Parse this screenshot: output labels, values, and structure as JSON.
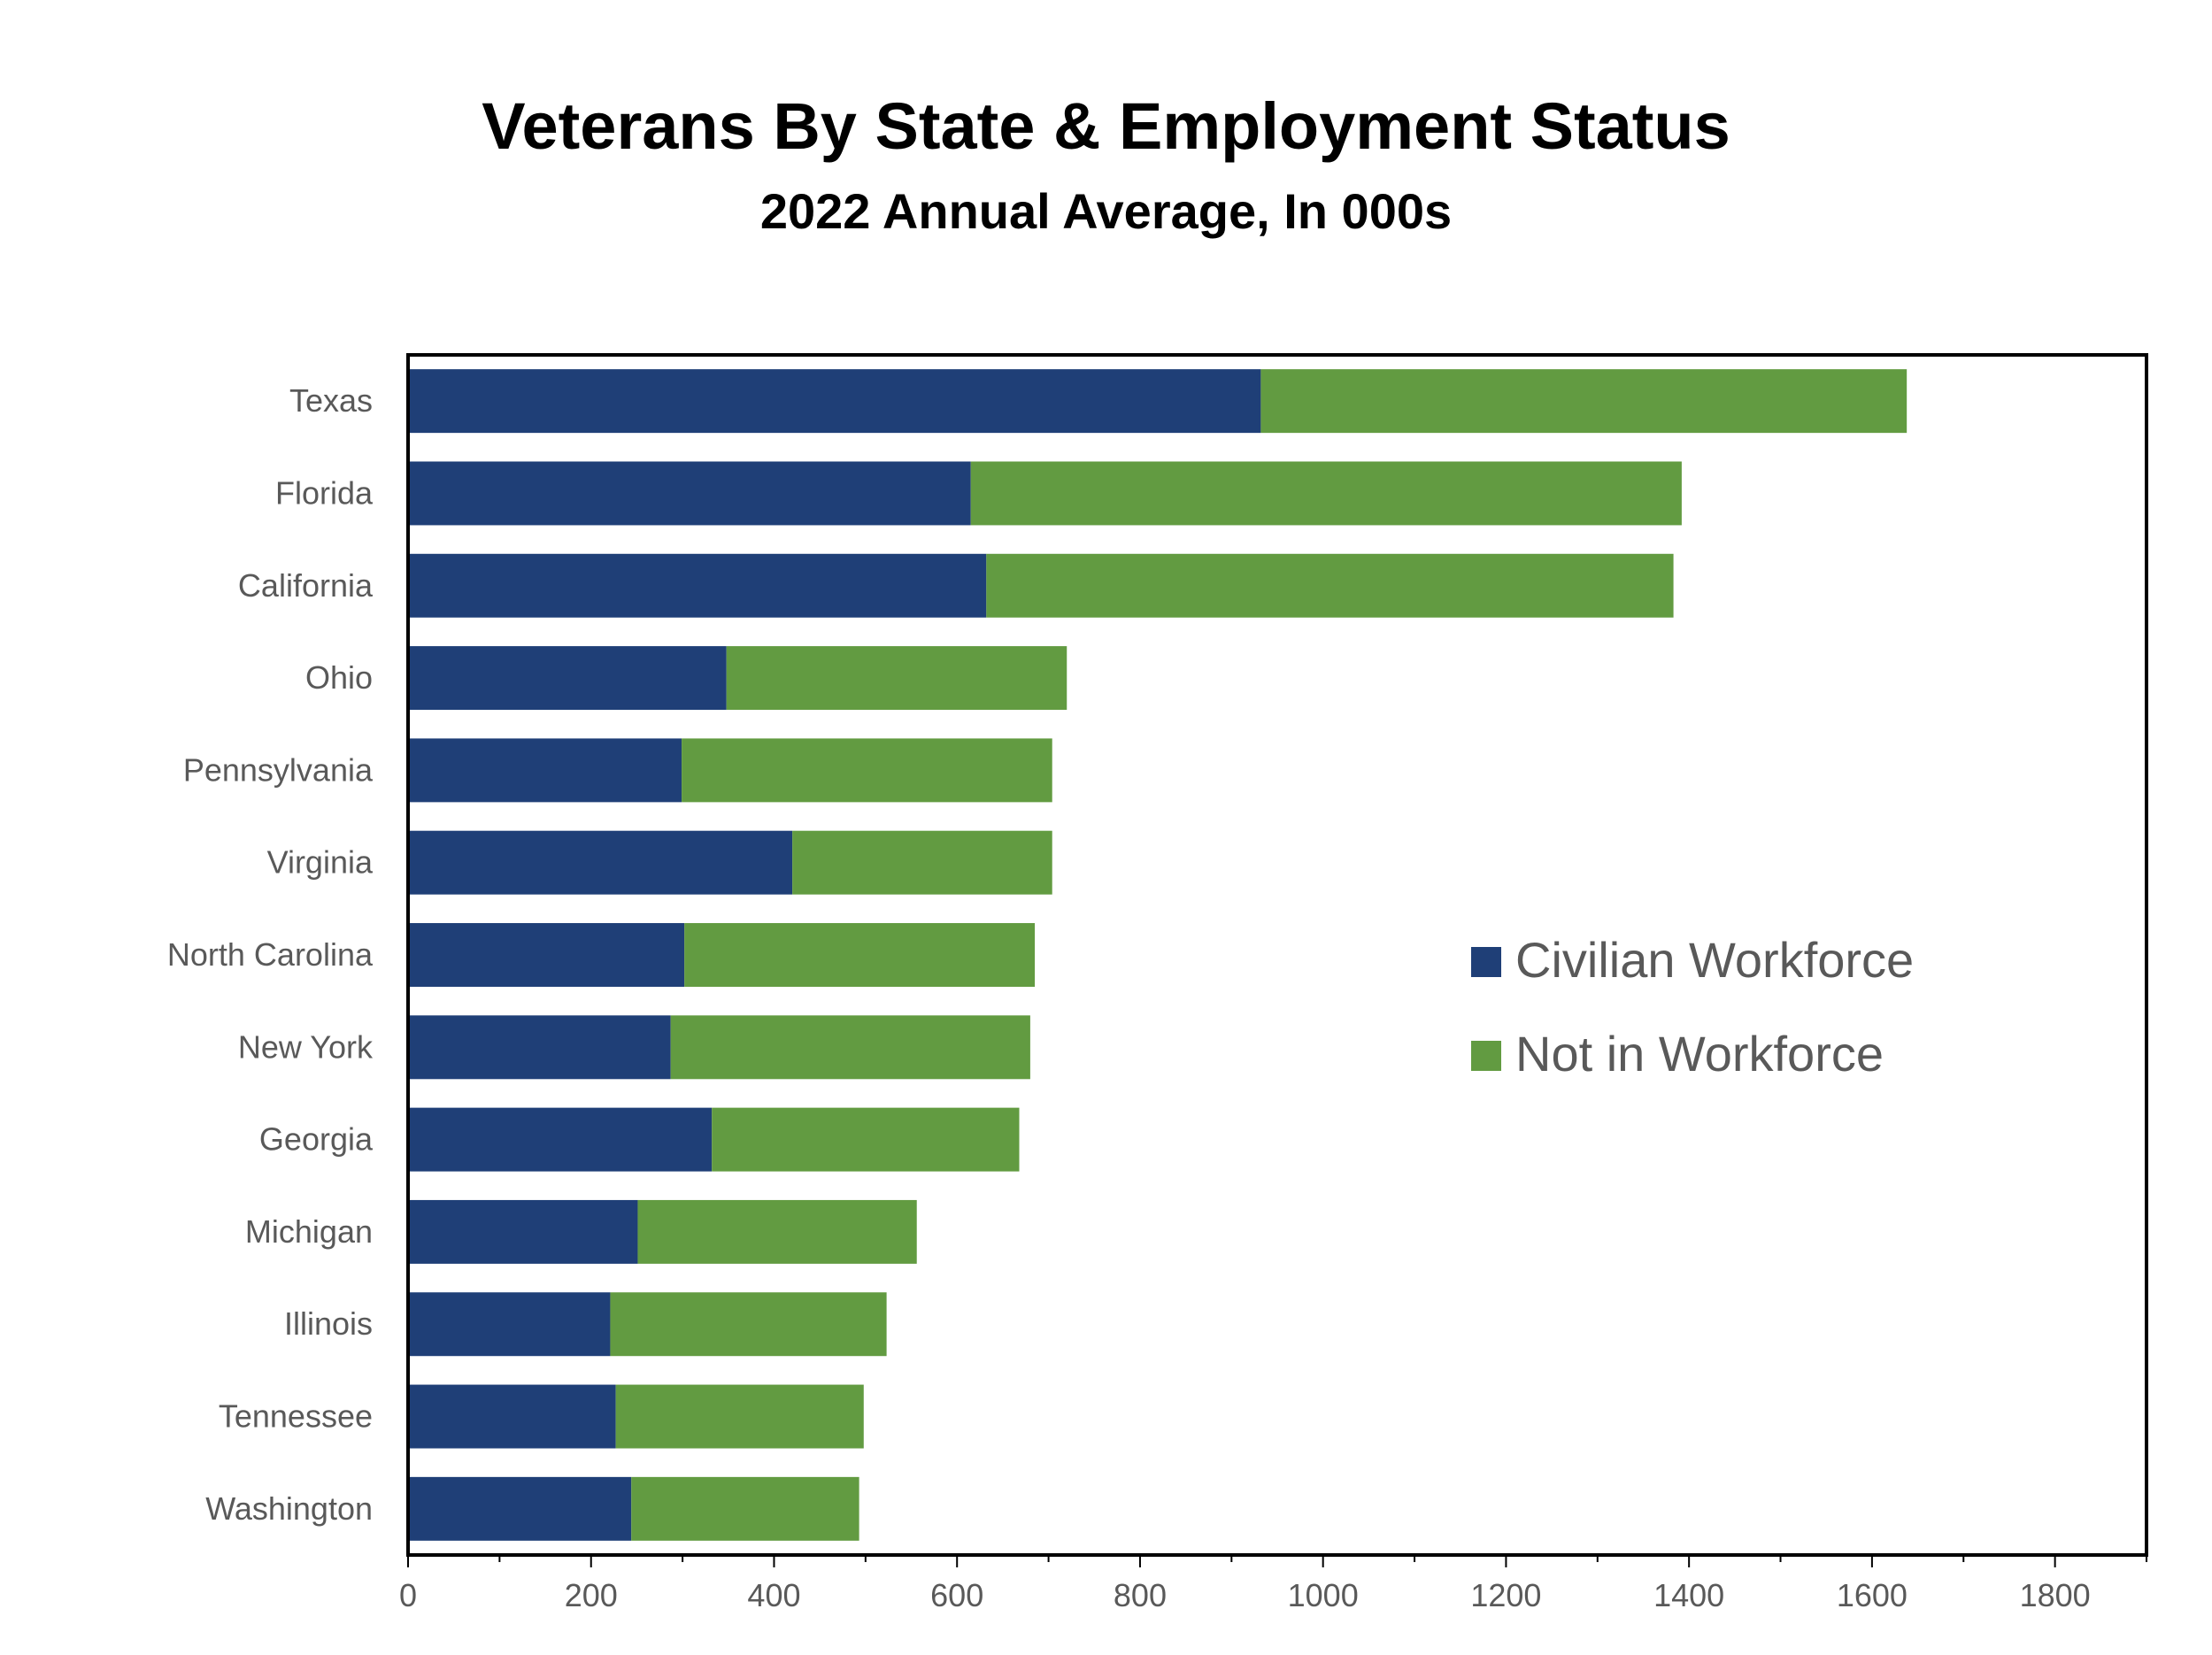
{
  "chart_data": {
    "type": "bar",
    "orientation": "horizontal",
    "stacked": true,
    "title": "Veterans By State & Employment Status",
    "subtitle": "2022 Annual Average, In 000s",
    "categories": [
      "Texas",
      "Florida",
      "California",
      "Ohio",
      "Pennsylvania",
      "Virginia",
      "North Carolina",
      "New York",
      "Georgia",
      "Michigan",
      "Illinois",
      "Tennessee",
      "Washington"
    ],
    "series": [
      {
        "name": "Civilian Workforce",
        "color": "#1f3f77",
        "values": [
          932,
          615,
          632,
          348,
          299,
          420,
          302,
          287,
          332,
          251,
          221,
          227,
          244
        ]
      },
      {
        "name": "Not in Workforce",
        "color": "#629b41",
        "values": [
          706,
          777,
          751,
          372,
          405,
          284,
          383,
          393,
          336,
          305,
          302,
          271,
          249
        ]
      }
    ],
    "xlim": [
      0,
      1900
    ],
    "xticks": [
      "0",
      "200",
      "400",
      "600",
      "800",
      "1000",
      "1200",
      "1400",
      "1600",
      "1800"
    ],
    "xlabel": "",
    "ylabel": "",
    "grid": false,
    "legend_position": "right-middle"
  }
}
